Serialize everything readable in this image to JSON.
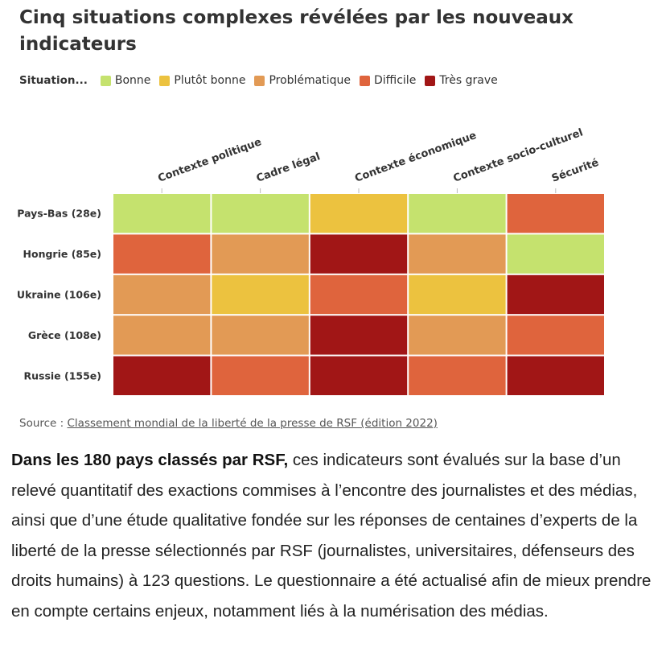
{
  "title": "Cinq situations complexes révélées par les nouveaux indicateurs",
  "legend": {
    "title": "Situation...",
    "items": [
      {
        "label": "Bonne",
        "color": "#c5e26e"
      },
      {
        "label": "Plutôt bonne",
        "color": "#ecc23f"
      },
      {
        "label": "Problématique",
        "color": "#e29a55"
      },
      {
        "label": "Difficile",
        "color": "#df643d"
      },
      {
        "label": "Très grave",
        "color": "#a11616"
      }
    ]
  },
  "chart_data": {
    "type": "heatmap",
    "columns": [
      "Contexte politique",
      "Cadre légal",
      "Contexte économique",
      "Contexte socio-culturel",
      "Sécurité"
    ],
    "rows": [
      "Pays-Bas (28e)",
      "Hongrie (85e)",
      "Ukraine (106e)",
      "Grèce (108e)",
      "Russie (155e)"
    ],
    "values": [
      [
        "Bonne",
        "Bonne",
        "Plutôt bonne",
        "Bonne",
        "Difficile"
      ],
      [
        "Difficile",
        "Problématique",
        "Très grave",
        "Problématique",
        "Bonne"
      ],
      [
        "Problématique",
        "Plutôt bonne",
        "Difficile",
        "Plutôt bonne",
        "Très grave"
      ],
      [
        "Problématique",
        "Problématique",
        "Très grave",
        "Problématique",
        "Difficile"
      ],
      [
        "Très grave",
        "Difficile",
        "Très grave",
        "Difficile",
        "Très grave"
      ]
    ]
  },
  "source": {
    "prefix": "Source : ",
    "link_text": "Classement mondial de la liberté de la presse de RSF (édition 2022)"
  },
  "article": {
    "lead": "Dans les 180 pays classés par RSF,",
    "body": " ces indicateurs sont évalués sur la base d’un relevé quantitatif des exactions commises à l’encontre des journalistes et des médias, ainsi que d’une étude qualitative fondée sur les réponses de centaines d’experts de la liberté de la presse sélectionnés par RSF (journalistes, universitaires, défenseurs des droits humains) à 123 questions. Le questionnaire a été actualisé afin de mieux prendre en compte certains enjeux, notamment liés à la numérisation des médias."
  }
}
